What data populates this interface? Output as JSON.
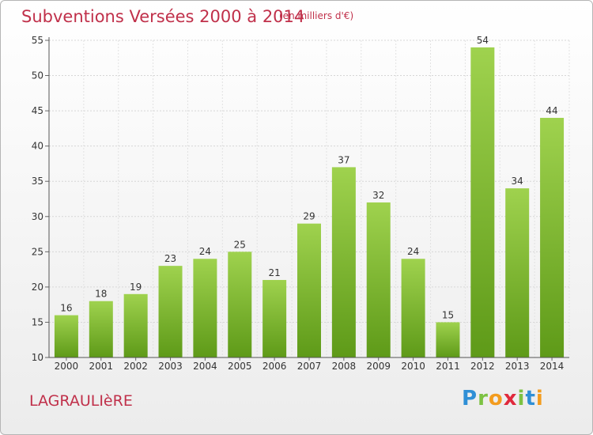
{
  "title": "Subventions Versées 2000 à 2014",
  "subtitle": "(en milliers d'€)",
  "commune": "LAGRAULIèRE",
  "logo_text": "Proxiti",
  "colors": {
    "title": "#c0304a",
    "bar_top": "#9fd24e",
    "bar_bottom": "#5e9a18"
  },
  "chart_data": {
    "type": "bar",
    "categories": [
      "2000",
      "2001",
      "2002",
      "2003",
      "2004",
      "2005",
      "2006",
      "2007",
      "2008",
      "2009",
      "2010",
      "2011",
      "2012",
      "2013",
      "2014"
    ],
    "values": [
      16,
      18,
      19,
      23,
      24,
      25,
      21,
      29,
      37,
      32,
      24,
      15,
      54,
      34,
      44
    ],
    "ylim": [
      10,
      55
    ],
    "yticks": [
      10,
      15,
      20,
      25,
      30,
      35,
      40,
      45,
      50,
      55
    ],
    "grid": true,
    "legend": "none",
    "xlabel": "",
    "ylabel": ""
  }
}
